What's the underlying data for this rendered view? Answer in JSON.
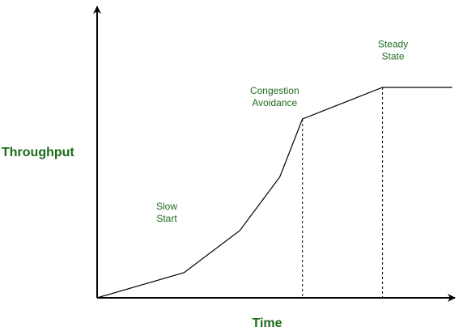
{
  "colors": {
    "axis": "#000000",
    "curve": "#000000",
    "label": "#1a6b1a",
    "phase_label": "#1f6b1f"
  },
  "chart_data": {
    "type": "line",
    "title": "",
    "xlabel": "Time",
    "ylabel": "Throughput",
    "grid": false,
    "xlim": [
      0,
      100
    ],
    "ylim": [
      0,
      100
    ],
    "series": [
      {
        "x": [
          0,
          25,
          41,
          52.5,
          59,
          82,
          102
        ],
        "y": [
          0,
          12,
          32,
          57.5,
          85,
          100,
          100
        ]
      }
    ],
    "markers": [
      {
        "x": 59
      },
      {
        "x": 82
      }
    ],
    "annotations": [
      {
        "lines": [
          "Slow",
          "Start"
        ],
        "x": 20,
        "y": 42
      },
      {
        "lines": [
          "Congestion",
          "Avoidance"
        ],
        "x": 51,
        "y": 97
      },
      {
        "lines": [
          "Steady",
          "State"
        ],
        "x": 85,
        "y": 119
      }
    ]
  }
}
